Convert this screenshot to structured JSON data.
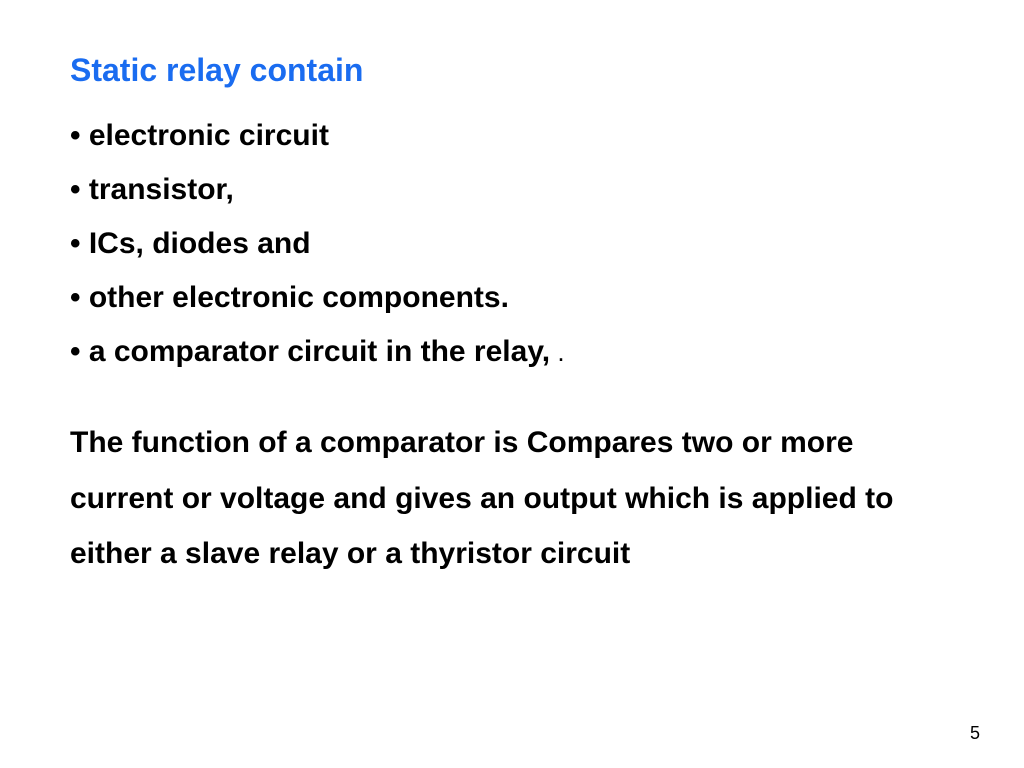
{
  "slide": {
    "title": "Static relay contain",
    "title_color": "#1a6cf0",
    "bullets": [
      {
        "text": "electronic circuit",
        "trailing": ""
      },
      {
        "text": "transistor,",
        "trailing": ""
      },
      {
        "text": "ICs, diodes and",
        "trailing": ""
      },
      {
        "text": "other electronic components.",
        "trailing": ""
      },
      {
        "text": "a comparator circuit in the relay,",
        "trailing": " ."
      }
    ],
    "paragraph": "The function of a comparator is Compares two or more current  or voltage and gives an output which is applied to either a slave relay or a thyristor circuit",
    "page_number": "5",
    "text_color": "#000000",
    "background_color": "#ffffff",
    "title_fontsize": 32,
    "body_fontsize": 30,
    "font_weight": "bold",
    "line_height": 1.85
  }
}
